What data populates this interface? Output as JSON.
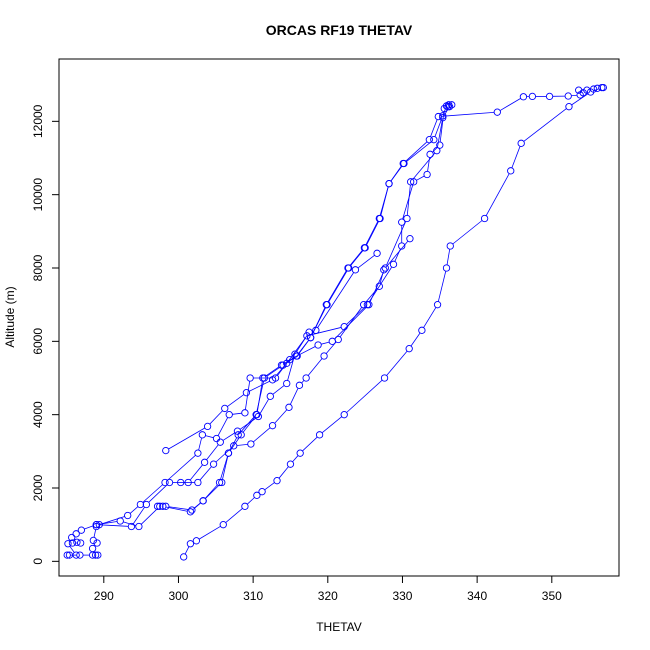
{
  "chart_data": {
    "type": "line",
    "title": "ORCAS RF19 THETAV",
    "xlabel": "THETAV",
    "ylabel": "Altitude (m)",
    "xlim": [
      284,
      359
    ],
    "ylim": [
      -400,
      13700
    ],
    "xticks": [
      290,
      300,
      310,
      320,
      330,
      340,
      350
    ],
    "yticks": [
      0,
      2000,
      4000,
      6000,
      8000,
      10000,
      12000
    ],
    "grid": false,
    "marker": "open-circle",
    "color": "#0000ff",
    "series": [
      {
        "points": [
          [
            300.7,
            120
          ],
          [
            301.6,
            480
          ],
          [
            302.4,
            560
          ],
          [
            306,
            1000
          ],
          [
            308.9,
            1500
          ],
          [
            310.5,
            1800
          ],
          [
            311.2,
            1900
          ],
          [
            313.2,
            2200
          ],
          [
            315,
            2650
          ],
          [
            316.3,
            2950
          ],
          [
            318.9,
            3450
          ],
          [
            322.2,
            4000
          ],
          [
            327.6,
            5000
          ],
          [
            330.9,
            5800
          ],
          [
            332.6,
            6300
          ],
          [
            334.7,
            7000
          ],
          [
            335.9,
            8000
          ],
          [
            336.4,
            8600
          ],
          [
            341,
            9350
          ],
          [
            344.5,
            10650
          ],
          [
            345.9,
            11400
          ],
          [
            352.3,
            12400
          ],
          [
            355.2,
            12800
          ],
          [
            356.7,
            12920
          ]
        ]
      },
      {
        "points": [
          [
            356.9,
            12920
          ],
          [
            356.1,
            12900
          ],
          [
            355.6,
            12880
          ],
          [
            354.7,
            12850
          ],
          [
            353.6,
            12850
          ],
          [
            354.2,
            12780
          ],
          [
            353.8,
            12720
          ],
          [
            352.2,
            12690
          ],
          [
            349.7,
            12680
          ],
          [
            347.4,
            12680
          ],
          [
            346.2,
            12670
          ],
          [
            342.7,
            12250
          ],
          [
            334.8,
            12130
          ],
          [
            333.6,
            11500
          ],
          [
            330.1,
            10850
          ],
          [
            328.2,
            10300
          ],
          [
            326.9,
            9350
          ],
          [
            324.9,
            8550
          ],
          [
            322.7,
            8000
          ],
          [
            319.8,
            7000
          ],
          [
            317.7,
            6100
          ],
          [
            315.9,
            5600
          ],
          [
            314,
            5350
          ],
          [
            311.5,
            5000
          ],
          [
            310.4,
            4000
          ],
          [
            308,
            3450
          ],
          [
            306.7,
            2950
          ],
          [
            305.8,
            2150
          ],
          [
            303.3,
            1650
          ],
          [
            301.8,
            1400
          ],
          [
            298.3,
            1500
          ],
          [
            297.5,
            1500
          ],
          [
            294.7,
            950
          ],
          [
            292.2,
            1100
          ],
          [
            289,
            1000
          ],
          [
            287,
            850
          ],
          [
            286.3,
            750
          ],
          [
            285.7,
            650
          ],
          [
            286.4,
            520
          ],
          [
            286.9,
            500
          ],
          [
            285.8,
            500
          ],
          [
            285.2,
            480
          ],
          [
            286.3,
            170
          ],
          [
            285.4,
            170
          ],
          [
            285.1,
            170
          ],
          [
            286.8,
            170
          ],
          [
            288.5,
            170
          ],
          [
            289.2,
            170
          ],
          [
            288.9,
            170
          ],
          [
            288.5,
            350
          ],
          [
            289.1,
            500
          ],
          [
            288.6,
            570
          ],
          [
            289,
            950
          ],
          [
            289.4,
            1000
          ],
          [
            293.2,
            1250
          ],
          [
            294.9,
            1550
          ],
          [
            298.2,
            2150
          ],
          [
            302.6,
            2950
          ],
          [
            303.2,
            3450
          ],
          [
            305.1,
            3350
          ],
          [
            306.8,
            4000
          ],
          [
            308.9,
            4050
          ],
          [
            309.6,
            5000
          ],
          [
            313,
            5000
          ],
          [
            314.5,
            5400
          ],
          [
            317.2,
            6150
          ],
          [
            322.2,
            6400
          ],
          [
            325.3,
            7000
          ],
          [
            328.8,
            8100
          ],
          [
            329.9,
            8600
          ],
          [
            329.9,
            9250
          ],
          [
            331.5,
            10350
          ],
          [
            333.3,
            10550
          ],
          [
            333.7,
            11100
          ],
          [
            335,
            11350
          ],
          [
            335.6,
            12350
          ],
          [
            336.1,
            12400
          ],
          [
            336.6,
            12450
          ]
        ]
      },
      {
        "points": [
          [
            336.2,
            12450
          ],
          [
            335.9,
            12420
          ],
          [
            335.4,
            12150
          ],
          [
            334.2,
            11500
          ],
          [
            330.2,
            10850
          ],
          [
            328.2,
            10300
          ],
          [
            327,
            9350
          ],
          [
            325,
            8550
          ],
          [
            322.8,
            8000
          ],
          [
            319.9,
            7000
          ],
          [
            317.7,
            6100
          ],
          [
            315.8,
            5600
          ],
          [
            313.8,
            5350
          ],
          [
            311.3,
            5000
          ],
          [
            310.5,
            4000
          ],
          [
            308.4,
            3450
          ],
          [
            306.7,
            2950
          ],
          [
            305.5,
            2150
          ],
          [
            303.3,
            1650
          ],
          [
            301.6,
            1350
          ],
          [
            297.9,
            1500
          ],
          [
            297.2,
            1500
          ]
        ]
      },
      {
        "points": [
          [
            298.3,
            3020
          ],
          [
            303.9,
            3680
          ],
          [
            306.2,
            4170
          ],
          [
            309.1,
            4600
          ],
          [
            312.6,
            4950
          ],
          [
            314.9,
            5500
          ],
          [
            318.7,
            5900
          ],
          [
            320.6,
            6000
          ],
          [
            325.5,
            7000
          ],
          [
            327.7,
            8000
          ],
          [
            330.6,
            9350
          ],
          [
            331.1,
            10350
          ],
          [
            334.6,
            11200
          ],
          [
            335.4,
            12100
          ],
          [
            336.3,
            12400
          ]
        ]
      },
      {
        "points": [
          [
            300.3,
            2150
          ],
          [
            302.6,
            2150
          ],
          [
            304.7,
            2650
          ],
          [
            307.4,
            3150
          ],
          [
            309.7,
            3200
          ],
          [
            312.6,
            3700
          ],
          [
            314.8,
            4200
          ],
          [
            316.2,
            4800
          ],
          [
            317.1,
            5000
          ],
          [
            319.5,
            5600
          ],
          [
            321.4,
            6050
          ],
          [
            324.8,
            7000
          ],
          [
            326.9,
            7500
          ],
          [
            327.5,
            7950
          ],
          [
            331,
            8800
          ]
        ]
      },
      {
        "points": [
          [
            289,
            1000
          ],
          [
            293.7,
            950
          ],
          [
            295.7,
            1550
          ],
          [
            298.8,
            2150
          ],
          [
            301.3,
            2150
          ],
          [
            303.5,
            2700
          ],
          [
            305.6,
            3250
          ],
          [
            307.9,
            3550
          ],
          [
            310.7,
            3950
          ],
          [
            312.3,
            4500
          ],
          [
            314.5,
            4850
          ],
          [
            315.6,
            5650
          ],
          [
            317.5,
            6250
          ],
          [
            318.4,
            6300
          ],
          [
            323.7,
            7950
          ],
          [
            326.6,
            8400
          ]
        ]
      }
    ]
  }
}
